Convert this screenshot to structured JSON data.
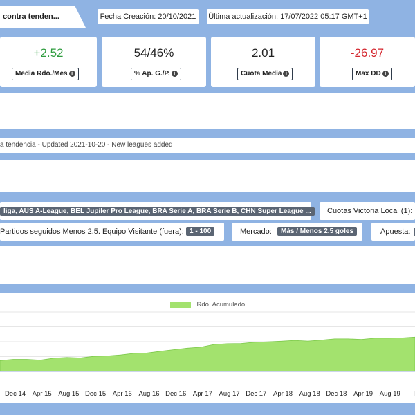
{
  "header": {
    "title": "contra tenden...",
    "creation_date": "Fecha Creación: 20/10/2021",
    "last_update": "Última actualización: 17/07/2022 05:17 GMT+1"
  },
  "kpis": [
    {
      "value": "+2.52",
      "label": "Media Rdo./Mes",
      "color": "#2e9c3e"
    },
    {
      "value": "54/46%",
      "label": "% Ap. G./P.",
      "color": "#222222"
    },
    {
      "value": "2.01",
      "label": "Cuota Media",
      "color": "#222222"
    },
    {
      "value": "-26.97",
      "label": "Max DD",
      "color": "#d4262e"
    }
  ],
  "notes": "a tendencia - Updated 2021-10-20 - New leagues added",
  "filters": {
    "leagues": "liga, AUS A-League, BEL Jupiler Pro League, BRA Serie A, BRA Serie B, CHN Super League ...",
    "odds_label": "Cuotas Victoria Local (1):",
    "matches_label": "Partidos seguidos Menos 2.5. Equipo Visitante (fuera):",
    "matches_value": "1 - 100",
    "market_label": "Mercado:",
    "market_value": "Más / Menos 2.5 goles",
    "bet_label": "Apuesta:"
  },
  "chart_data": {
    "type": "area",
    "series": [
      {
        "name": "Rdo. Acumulado",
        "color": "#a3e26e"
      }
    ],
    "x": [
      "Dec 14",
      "Apr 15",
      "Aug 15",
      "Dec 15",
      "Apr 16",
      "Aug 16",
      "Dec 16",
      "Apr 17",
      "Aug 17",
      "Dec 17",
      "Apr 18",
      "Aug 18",
      "Dec 18",
      "Apr 19",
      "Aug 19",
      "D"
    ],
    "shape": [
      0.3,
      0.32,
      0.33,
      0.31,
      0.35,
      0.38,
      0.37,
      0.4,
      0.42,
      0.45,
      0.48,
      0.5,
      0.55,
      0.58,
      0.63,
      0.66,
      0.72,
      0.75,
      0.76,
      0.78,
      0.8,
      0.82,
      0.83,
      0.82,
      0.85,
      0.87,
      0.88,
      0.87,
      0.89,
      0.9,
      0.91,
      0.92
    ],
    "grid": true,
    "legend": "top-center"
  }
}
